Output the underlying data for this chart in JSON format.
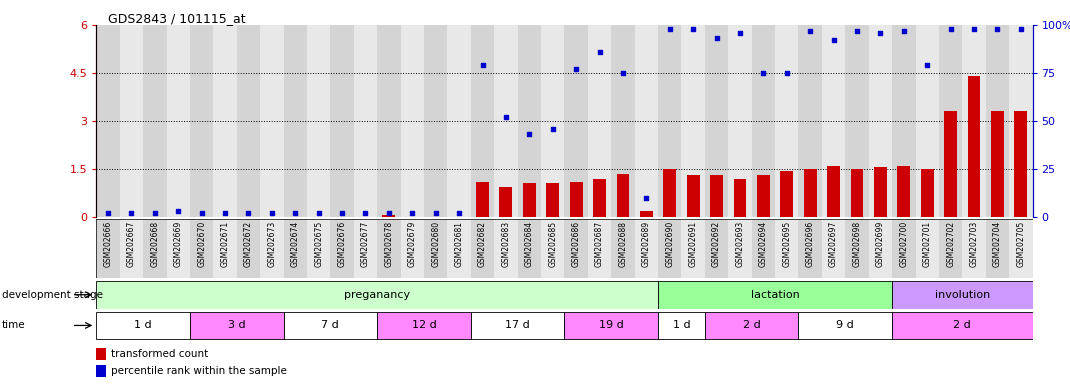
{
  "title": "GDS2843 / 101115_at",
  "samples": [
    "GSM202666",
    "GSM202667",
    "GSM202668",
    "GSM202669",
    "GSM202670",
    "GSM202671",
    "GSM202672",
    "GSM202673",
    "GSM202674",
    "GSM202675",
    "GSM202676",
    "GSM202677",
    "GSM202678",
    "GSM202679",
    "GSM202680",
    "GSM202681",
    "GSM202682",
    "GSM202683",
    "GSM202684",
    "GSM202685",
    "GSM202686",
    "GSM202687",
    "GSM202688",
    "GSM202689",
    "GSM202690",
    "GSM202691",
    "GSM202692",
    "GSM202693",
    "GSM202694",
    "GSM202695",
    "GSM202696",
    "GSM202697",
    "GSM202698",
    "GSM202699",
    "GSM202700",
    "GSM202701",
    "GSM202702",
    "GSM202703",
    "GSM202704",
    "GSM202705"
  ],
  "bar_values": [
    0.0,
    0.0,
    0.0,
    0.0,
    0.0,
    0.0,
    0.0,
    0.0,
    0.0,
    0.0,
    0.0,
    0.0,
    0.05,
    0.0,
    0.0,
    0.0,
    1.1,
    0.95,
    1.05,
    1.05,
    1.1,
    1.2,
    1.35,
    0.2,
    1.5,
    1.3,
    1.3,
    1.2,
    1.3,
    1.45,
    1.5,
    1.6,
    1.5,
    1.55,
    1.6,
    1.5,
    3.3,
    4.4,
    3.3,
    3.3
  ],
  "percentile_values": [
    2,
    2,
    2,
    3,
    2,
    2,
    2,
    2,
    2,
    2,
    2,
    2,
    2,
    2,
    2,
    2,
    79,
    52,
    43,
    46,
    77,
    86,
    75,
    10,
    98,
    98,
    93,
    96,
    75,
    75,
    97,
    92,
    97,
    96,
    97,
    79,
    98,
    98,
    98,
    98
  ],
  "bar_color": "#cc0000",
  "dot_color": "#0000cc",
  "ylim_left": [
    0,
    6
  ],
  "ylim_right": [
    0,
    100
  ],
  "yticks_left": [
    0,
    1.5,
    3.0,
    4.5,
    6.0
  ],
  "ytick_labels_left": [
    "0",
    "1.5",
    "3",
    "4.5",
    "6"
  ],
  "yticks_right": [
    0,
    25,
    50,
    75,
    100
  ],
  "ytick_labels_right": [
    "0",
    "25",
    "50",
    "75",
    "100%"
  ],
  "dotted_lines": [
    1.5,
    3.0,
    4.5
  ],
  "stages": [
    {
      "label": "preganancy",
      "start": 0,
      "end": 23,
      "color": "#ccffcc"
    },
    {
      "label": "lactation",
      "start": 24,
      "end": 33,
      "color": "#99ff99"
    },
    {
      "label": "involution",
      "start": 34,
      "end": 39,
      "color": "#cc99ff"
    }
  ],
  "time_periods": [
    {
      "label": "1 d",
      "start": 0,
      "end": 3,
      "color": "#ffffff"
    },
    {
      "label": "3 d",
      "start": 4,
      "end": 7,
      "color": "#ff88ff"
    },
    {
      "label": "7 d",
      "start": 8,
      "end": 11,
      "color": "#ffffff"
    },
    {
      "label": "12 d",
      "start": 12,
      "end": 15,
      "color": "#ff88ff"
    },
    {
      "label": "17 d",
      "start": 16,
      "end": 19,
      "color": "#ffffff"
    },
    {
      "label": "19 d",
      "start": 20,
      "end": 23,
      "color": "#ff88ff"
    },
    {
      "label": "1 d",
      "start": 24,
      "end": 25,
      "color": "#ffffff"
    },
    {
      "label": "2 d",
      "start": 26,
      "end": 29,
      "color": "#ff88ff"
    },
    {
      "label": "9 d",
      "start": 30,
      "end": 33,
      "color": "#ffffff"
    },
    {
      "label": "2 d",
      "start": 34,
      "end": 39,
      "color": "#ff88ff"
    }
  ],
  "legend_bar_label": "transformed count",
  "legend_dot_label": "percentile rank within the sample",
  "stage_row_label": "development stage",
  "time_row_label": "time",
  "bg_col_even": "#d4d4d4",
  "bg_col_odd": "#e8e8e8"
}
